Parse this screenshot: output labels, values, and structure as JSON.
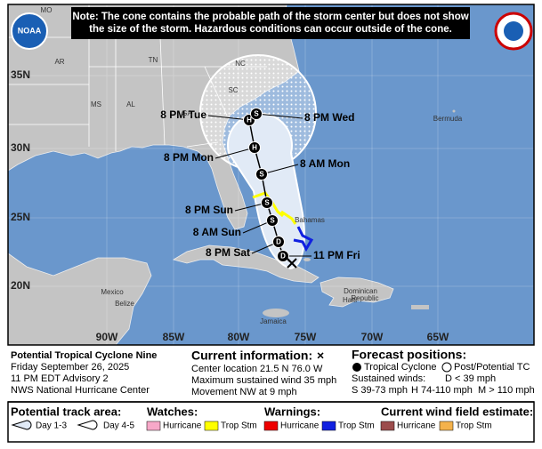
{
  "note": [
    "Note: The cone contains the probable path of the storm center but does not show",
    "the size of the storm. Hazardous conditions can occur outside of the cone."
  ],
  "logo": "NOAA",
  "map": {
    "latitude_labels": [
      "35N",
      "30N",
      "25N",
      "20N"
    ],
    "longitude_labels": [
      "90W",
      "85W",
      "80W",
      "75W",
      "70W",
      "65W"
    ],
    "place_labels": [
      "MO",
      "KY",
      "VA",
      "AR",
      "TN",
      "NC",
      "SC",
      "MS",
      "AL",
      "GA",
      "Bermuda",
      "Bahamas",
      "Mexico",
      "Belize",
      "Jamaica",
      "Haiti",
      "Dominican",
      "Republic"
    ],
    "points": [
      {
        "label": "11 PM Fri",
        "letter": "D"
      },
      {
        "label": "8 PM Sat",
        "letter": "D"
      },
      {
        "label": "8 AM Sun",
        "letter": "S"
      },
      {
        "label": "8 PM Sun",
        "letter": "S"
      },
      {
        "label": "8 AM Mon",
        "letter": "S"
      },
      {
        "label": "8 PM Mon",
        "letter": "H"
      },
      {
        "label": "8 PM Tue",
        "letter": "H"
      },
      {
        "label": "8 PM Wed",
        "letter": "S"
      }
    ]
  },
  "storm": [
    "Potential Tropical Cyclone Nine",
    "Friday September 26, 2025",
    "11 PM EDT Advisory 2",
    "NWS National Hurricane Center"
  ],
  "current": {
    "title": "Current information:",
    "symbol": "×",
    "lines": [
      "Center location 21.5 N 76.0 W",
      "Maximum sustained wind 35 mph",
      "Movement NW at 9 mph"
    ]
  },
  "forecast": {
    "title": "Forecast positions:",
    "tropical": "Tropical Cyclone",
    "post": "Post/Potential TC",
    "winds_title": "Sustained winds:",
    "d": "D < 39 mph",
    "s": "S 39-73 mph",
    "h": "H 74-110 mph",
    "m": "M > 110 mph"
  },
  "legend": {
    "track_title": "Potential track area:",
    "day13": "Day 1-3",
    "day45": "Day 4-5",
    "watches_title": "Watches:",
    "watch_hurricane": "Hurricane",
    "watch_ts": "Trop Stm",
    "warnings_title": "Warnings:",
    "warn_hurricane": "Hurricane",
    "warn_ts": "Trop Stm",
    "wind_title": "Current wind field estimate:",
    "wind_hurricane": "Hurricane",
    "wind_ts": "Trop Stm"
  }
}
